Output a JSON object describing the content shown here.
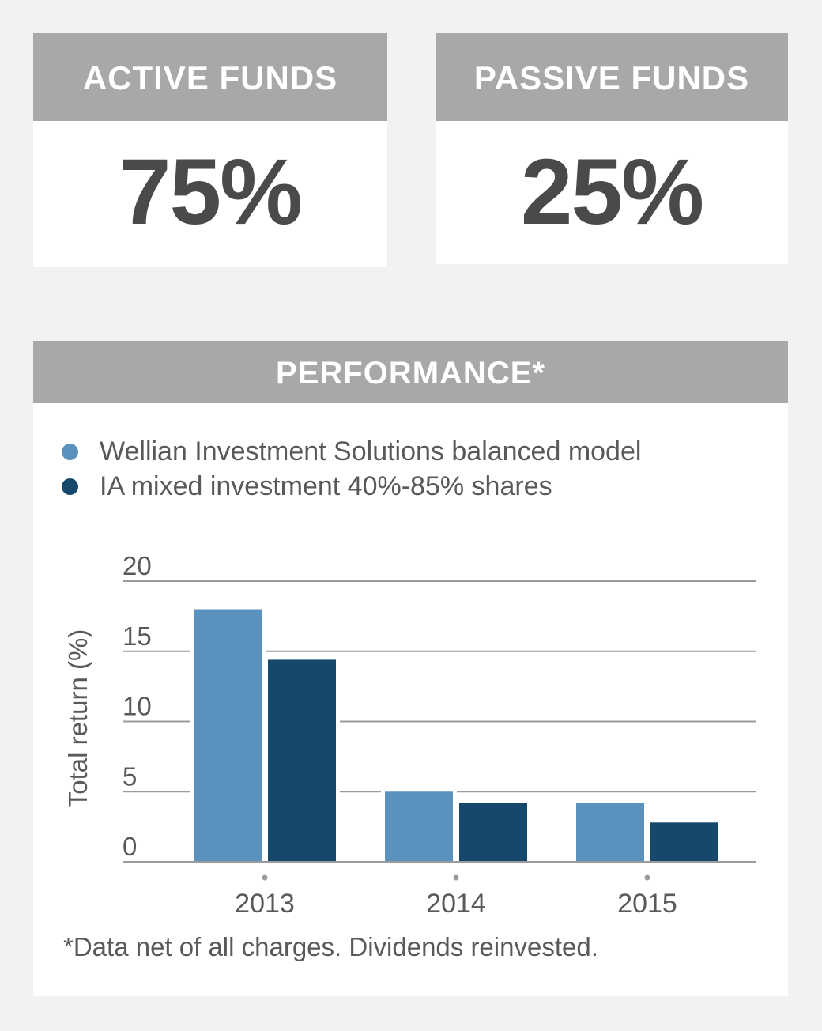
{
  "cards": [
    {
      "title": "ACTIVE FUNDS",
      "value": "75%"
    },
    {
      "title": "PASSIVE FUNDS",
      "value": "25%"
    }
  ],
  "performance": {
    "title": "PERFORMANCE*",
    "footnote": "*Data net of all charges. Dividends reinvested."
  },
  "colors": {
    "header": "#a7a8aa",
    "series1": "#5b91bd",
    "series2": "#15486b",
    "grid": "#9b9b9b",
    "text": "#58595b"
  },
  "chart_data": {
    "type": "bar",
    "categories": [
      "2013",
      "2014",
      "2015"
    ],
    "series": [
      {
        "name": "Wellian Investment Solutions balanced model",
        "values": [
          18.0,
          5.0,
          4.2
        ]
      },
      {
        "name": "IA mixed investment 40%-85% shares",
        "values": [
          14.4,
          4.2,
          2.8
        ]
      }
    ],
    "ylabel": "Total return (%)",
    "ylim": [
      0,
      20
    ],
    "yticks": [
      "0",
      "5",
      "10",
      "15",
      "20"
    ],
    "grid": true,
    "legend_position": "top-left"
  }
}
